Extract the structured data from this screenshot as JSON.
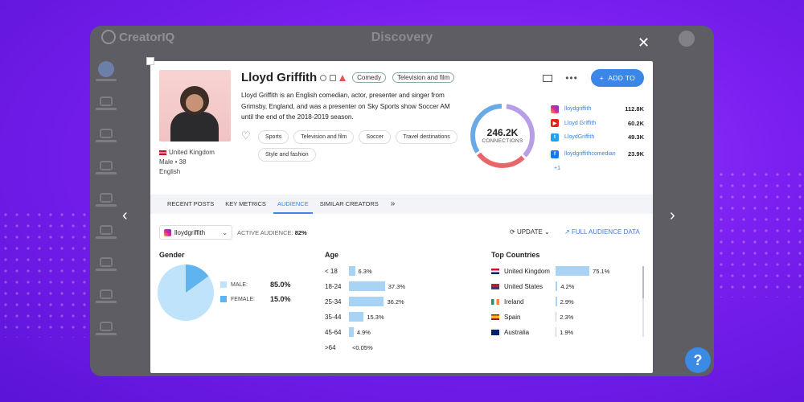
{
  "background_app": {
    "logo": "CreatorIQ",
    "title": "Discovery"
  },
  "profile": {
    "name": "Lloyd Griffith",
    "categories": [
      "Comedy",
      "Television and film"
    ],
    "bio": "Lloyd Griffith is an English comedian, actor, presenter and singer from Grimsby, England, and was a presenter on Sky Sports show Soccer AM until the end of the 2018-2019 season.",
    "country": "United Kingdom",
    "gender": "Male",
    "separator": "•",
    "age": "38",
    "language": "English",
    "tags": [
      "Sports",
      "Television and film",
      "Soccer",
      "Travel destinations",
      "Style and fashion"
    ],
    "connections_value": "246.2K",
    "connections_label": "CONNECTIONS",
    "add_to_label": "ADD TO",
    "add_plus": "+"
  },
  "socials": [
    {
      "platform": "instagram-icon",
      "handle": "lloydgriffith",
      "count": "112.8K",
      "color": "#d6249f"
    },
    {
      "platform": "youtube-icon",
      "handle": "Lloyd Griffith",
      "count": "60.2K",
      "color": "#e62117"
    },
    {
      "platform": "twitter-icon",
      "handle": "LloydGriffith",
      "count": "49.3K",
      "color": "#1da1f2"
    },
    {
      "platform": "facebook-icon",
      "handle": "lloydgriffithcomedian",
      "count": "23.9K",
      "color": "#1877f2"
    }
  ],
  "socials_more": "+1",
  "tabs": [
    "RECENT POSTS",
    "KEY METRICS",
    "AUDIENCE",
    "SIMILAR CREATORS"
  ],
  "tabs_more": "»",
  "audience": {
    "account": "lloydgriffith",
    "active_label": "ACTIVE AUDIENCE:",
    "active_value": "82%",
    "update_label": "UPDATE",
    "full_data_label": "FULL AUDIENCE DATA",
    "gender_title": "Gender",
    "gender": [
      {
        "label": "MALE:",
        "value": "85.0%",
        "fraction": 0.85,
        "color": "#bfe3fb"
      },
      {
        "label": "FEMALE:",
        "value": "15.0%",
        "fraction": 0.15,
        "color": "#5fb3ee"
      }
    ],
    "age_title": "Age",
    "age": [
      {
        "label": "< 18",
        "value": "6.3%",
        "pct": 6.3
      },
      {
        "label": "18-24",
        "value": "37.3%",
        "pct": 37.3
      },
      {
        "label": "25-34",
        "value": "36.2%",
        "pct": 36.2
      },
      {
        "label": "35-44",
        "value": "15.3%",
        "pct": 15.3
      },
      {
        "label": "45-64",
        "value": "4.9%",
        "pct": 4.9
      },
      {
        "label": ">64",
        "value": "<0.05%",
        "pct": 0
      }
    ],
    "countries_title": "Top Countries",
    "countries": [
      {
        "label": "United Kingdom",
        "value": "75.1%",
        "pct": 75.1
      },
      {
        "label": "United States",
        "value": "4.2%",
        "pct": 4.2
      },
      {
        "label": "Ireland",
        "value": "2.9%",
        "pct": 2.9
      },
      {
        "label": "Spain",
        "value": "2.3%",
        "pct": 2.3
      },
      {
        "label": "Australia",
        "value": "1.9%",
        "pct": 1.9
      }
    ]
  },
  "colors": {
    "accent": "#3b86e6",
    "bar": "#a9d3f5",
    "donut_blue": "#6aa9e8",
    "donut_purple": "#b89ee6",
    "donut_red": "#e8666a"
  },
  "help_label": "?"
}
